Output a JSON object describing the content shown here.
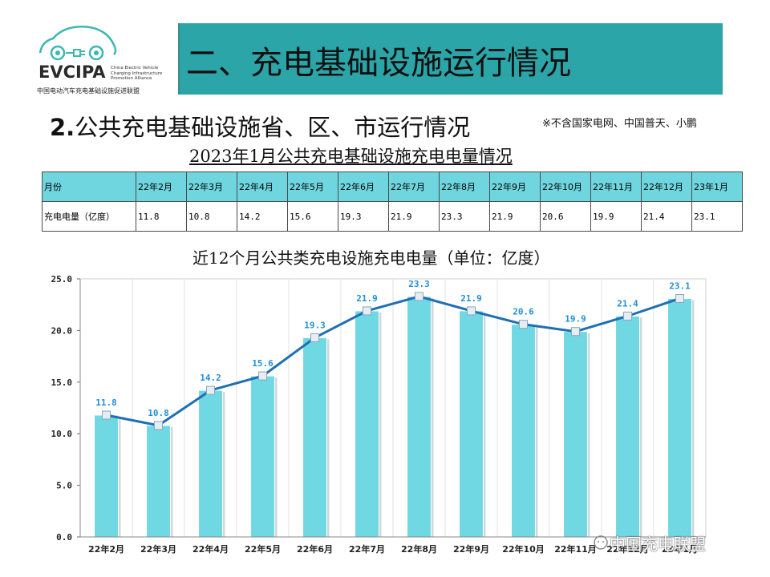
{
  "logo": {
    "word": "EVCIPA",
    "english": "China Electric Vehicle Charging Infrastructure Promotion Alliance",
    "chinese": "中国电动汽车充电基础设施促进联盟"
  },
  "header": {
    "title": "二、充电基础设施运行情况"
  },
  "section": {
    "number": "2.",
    "title": "公共充电基础设施省、区、市运行情况",
    "note": "※不含国家电网、中国普天、小鹏"
  },
  "table": {
    "title": "2023年1月公共充电基础设施充电电量情况",
    "row_labels": [
      "月份",
      "充电电量（亿度）"
    ],
    "months": [
      "22年2月",
      "22年3月",
      "22年4月",
      "22年5月",
      "22年6月",
      "22年7月",
      "22年8月",
      "22年9月",
      "22年10月",
      "22年11月",
      "22年12月",
      "23年1月"
    ],
    "values": [
      "11.8",
      "10.8",
      "14.2",
      "15.6",
      "19.3",
      "21.9",
      "23.3",
      "21.9",
      "20.6",
      "19.9",
      "21.4",
      "23.1"
    ]
  },
  "chart_data": {
    "type": "bar",
    "title": "近12个月公共类充电设施充电电量（单位：亿度）",
    "categories": [
      "22年2月",
      "22年3月",
      "22年4月",
      "22年5月",
      "22年6月",
      "22年7月",
      "22年8月",
      "22年9月",
      "22年10月",
      "22年11月",
      "22年12月",
      "23年1月"
    ],
    "series": [
      {
        "type": "bar",
        "values": [
          11.8,
          10.8,
          14.2,
          15.6,
          19.3,
          21.9,
          23.3,
          21.9,
          20.6,
          19.9,
          21.4,
          23.1
        ]
      },
      {
        "type": "line",
        "values": [
          11.8,
          10.8,
          14.2,
          15.6,
          19.3,
          21.9,
          23.3,
          21.9,
          20.6,
          19.9,
          21.4,
          23.1
        ]
      }
    ],
    "ylim": [
      0,
      25
    ],
    "yticks": [
      "0.0",
      "5.0",
      "10.0",
      "15.0",
      "20.0",
      "25.0"
    ],
    "grid": true,
    "colors": {
      "bar": "#6fd8e2",
      "line": "#1f6fb5",
      "label": "#1f8fd8"
    }
  },
  "watermark": {
    "text": "中国充电联盟"
  }
}
